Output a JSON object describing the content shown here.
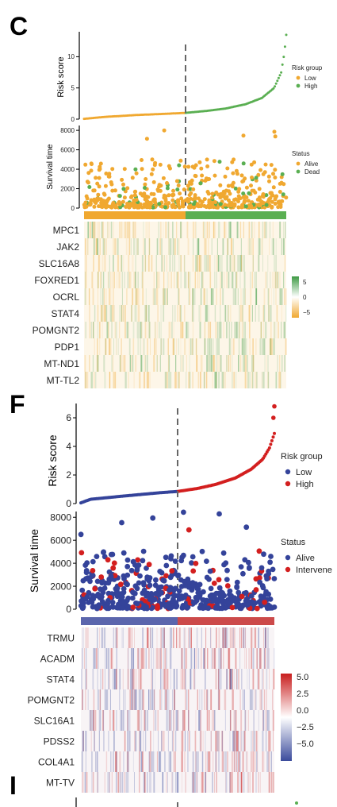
{
  "panels": {
    "c": {
      "letter": "C",
      "colors": {
        "low": "#f0a830",
        "high": "#5aaf52",
        "alive": "#f0a830",
        "dead": "#5aaf52",
        "heat_low": "#f0a830",
        "heat_mid": "#ffffff",
        "heat_high": "#3f9a45"
      }
    },
    "f": {
      "letter": "F",
      "colors": {
        "low": "#34439a",
        "high": "#d31f1f",
        "alive": "#34439a",
        "dead": "#d31f1f",
        "heat_low": "#3b4b9c",
        "heat_mid": "#ffffff",
        "heat_high": "#c81e1e"
      }
    },
    "i": {
      "letter": "I"
    }
  },
  "chart_data": [
    {
      "type": "line",
      "panel": "C",
      "subplot": "risk-score",
      "ylabel": "Risk score",
      "yticks": [
        0,
        5,
        10
      ],
      "ylim": [
        0,
        14
      ],
      "n_samples": 500,
      "cutoff_index": 250,
      "curve_points": [
        [
          0,
          0.05
        ],
        [
          0.1,
          0.35
        ],
        [
          0.25,
          0.65
        ],
        [
          0.4,
          0.85
        ],
        [
          0.5,
          1.0
        ],
        [
          0.6,
          1.3
        ],
        [
          0.7,
          1.7
        ],
        [
          0.8,
          2.4
        ],
        [
          0.88,
          3.4
        ],
        [
          0.94,
          5.0
        ],
        [
          0.975,
          7.5
        ],
        [
          0.99,
          10.5
        ],
        [
          1.0,
          13.5
        ]
      ],
      "legend": {
        "title": "Risk group",
        "entries": [
          "Low",
          "High"
        ]
      }
    },
    {
      "type": "scatter",
      "panel": "C",
      "subplot": "survival-time",
      "ylabel": "Survival time",
      "yticks": [
        0,
        2000,
        4000,
        6000,
        8000
      ],
      "ylim": [
        0,
        8500
      ],
      "legend": {
        "title": "Status",
        "entries": [
          "Alive",
          "Dead"
        ]
      }
    },
    {
      "type": "heatmap",
      "panel": "C",
      "genes": [
        "MPC1",
        "JAK2",
        "SLC16A8",
        "FOXRED1",
        "OCRL",
        "STAT4",
        "POMGNT2",
        "PDP1",
        "MT-ND1",
        "MT-TL2"
      ],
      "colorbar_ticks": [
        "5",
        "0",
        "−5"
      ],
      "scale": [
        -5,
        5
      ]
    },
    {
      "type": "line",
      "panel": "F",
      "subplot": "risk-score",
      "ylabel": "Risk score",
      "yticks": [
        0,
        2,
        4,
        6
      ],
      "ylim": [
        0,
        7
      ],
      "n_samples": 500,
      "cutoff_index": 250,
      "curve_points": [
        [
          0,
          0.05
        ],
        [
          0.05,
          0.3
        ],
        [
          0.2,
          0.5
        ],
        [
          0.4,
          0.75
        ],
        [
          0.5,
          0.85
        ],
        [
          0.6,
          1.05
        ],
        [
          0.7,
          1.35
        ],
        [
          0.8,
          1.8
        ],
        [
          0.88,
          2.4
        ],
        [
          0.94,
          3.1
        ],
        [
          0.975,
          3.9
        ],
        [
          0.99,
          4.5
        ],
        [
          1.0,
          4.9
        ]
      ],
      "outliers": [
        [
          0.995,
          6.0
        ],
        [
          1.0,
          6.8
        ]
      ],
      "legend": {
        "title": "Risk group",
        "entries": [
          "Low",
          "High"
        ]
      }
    },
    {
      "type": "scatter",
      "panel": "F",
      "subplot": "survival-time",
      "ylabel": "Survival time",
      "yticks": [
        0,
        2000,
        4000,
        6000,
        8000
      ],
      "ylim": [
        0,
        8500
      ],
      "legend": {
        "title": "Status",
        "entries": [
          "Alive",
          "Intervene"
        ]
      }
    },
    {
      "type": "heatmap",
      "panel": "F",
      "genes": [
        "TRMU",
        "ACADM",
        "STAT4",
        "POMGNT2",
        "SLC16A1",
        "PDSS2",
        "COL4A1",
        "MT-TV"
      ],
      "colorbar_ticks": [
        "5.0",
        "2.5",
        "0.0",
        "−2.5",
        "−5.0"
      ],
      "scale": [
        -5,
        5
      ]
    }
  ]
}
